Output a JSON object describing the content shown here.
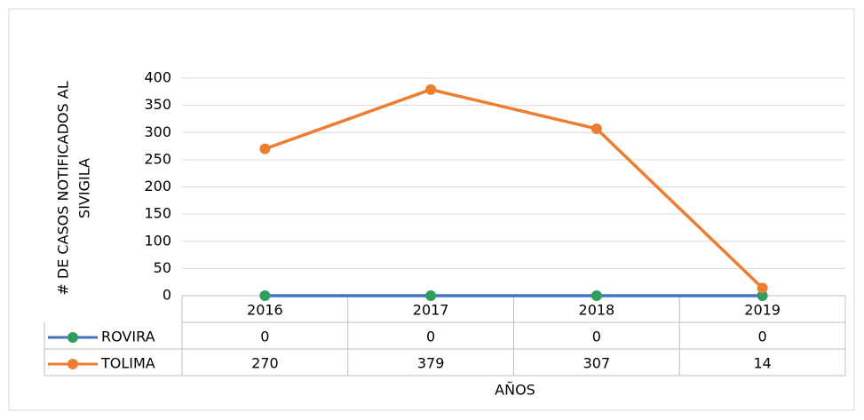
{
  "chart_data": {
    "type": "line",
    "categories": [
      "2016",
      "2017",
      "2018",
      "2019"
    ],
    "series": [
      {
        "name": "ROVIRA",
        "color": "#4472c4",
        "marker_color": "#2e9e5b",
        "values": [
          0,
          0,
          0,
          0
        ]
      },
      {
        "name": "TOLIMA",
        "color": "#ed7d31",
        "marker_color": "#ed7d31",
        "values": [
          270,
          379,
          307,
          14
        ]
      }
    ],
    "y_label": [
      "# DE CASOS NOTIFICADOS AL",
      "SIVIGILA"
    ],
    "x_label": "AÑOS",
    "ylim": [
      0,
      400
    ],
    "yticks": [
      0,
      50,
      100,
      150,
      200,
      250,
      300,
      350,
      400
    ],
    "grid": true,
    "data_table": true
  }
}
